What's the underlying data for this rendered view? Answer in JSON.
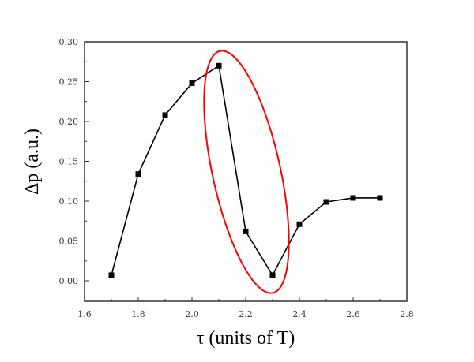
{
  "chart_data": {
    "type": "line",
    "title": "",
    "xlabel": "τ (units of T)",
    "ylabel": "Δp (a.u.)",
    "xlim": [
      1.6,
      2.8
    ],
    "ylim": [
      -0.0175,
      0.3
    ],
    "x_ticks": [
      1.6,
      1.8,
      2.0,
      2.2,
      2.4,
      2.6,
      2.8
    ],
    "x_tick_labels": [
      "1.6",
      "1.8",
      "2.0",
      "2.2",
      "2.4",
      "2.6",
      "2.8"
    ],
    "y_ticks": [
      0.0,
      0.05,
      0.1,
      0.15,
      0.2,
      0.25,
      0.3
    ],
    "y_tick_labels": [
      "0.00",
      "0.05",
      "0.10",
      "0.15",
      "0.20",
      "0.25",
      "0.30"
    ],
    "grid": false,
    "legend": null,
    "series": [
      {
        "name": "Δp",
        "marker": "square",
        "color": "#000000",
        "x": [
          1.7,
          1.8,
          1.9,
          2.0,
          2.1,
          2.2,
          2.3,
          2.4,
          2.5,
          2.6,
          2.7
        ],
        "values": [
          0.007,
          0.134,
          0.208,
          0.248,
          0.27,
          0.062,
          0.007,
          0.071,
          0.099,
          0.104,
          0.104
        ]
      }
    ],
    "annotations": [
      {
        "type": "ellipse",
        "color": "#ff0000",
        "description": "Red ellipse highlighting the sharp drop between τ=2.1 and τ=2.3"
      }
    ]
  },
  "axes": {
    "x_title": "τ (units of T)",
    "y_title": "Δp (a.u.)"
  }
}
